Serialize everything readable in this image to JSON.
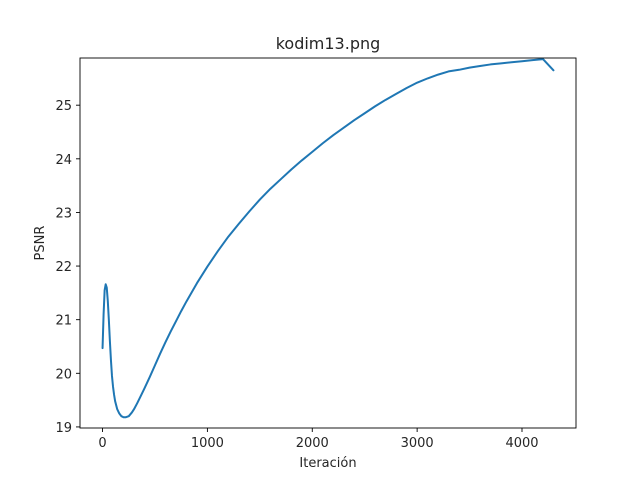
{
  "chart_data": {
    "type": "line",
    "title": "kodim13.png",
    "xlabel": "Iteración",
    "ylabel": "PSNR",
    "xlim": [
      -215,
      4515
    ],
    "ylim": [
      18.98,
      25.88
    ],
    "xticks": [
      0,
      1000,
      2000,
      3000,
      4000
    ],
    "yticks": [
      19,
      20,
      21,
      22,
      23,
      24,
      25
    ],
    "grid": false,
    "legend": "none",
    "series": [
      {
        "color": "#1f77b4",
        "x": [
          0,
          10,
          20,
          30,
          40,
          50,
          60,
          70,
          80,
          90,
          100,
          110,
          120,
          140,
          160,
          180,
          200,
          220,
          250,
          280,
          300,
          330,
          360,
          400,
          450,
          500,
          550,
          600,
          650,
          700,
          750,
          800,
          850,
          900,
          1000,
          1100,
          1200,
          1300,
          1400,
          1500,
          1600,
          1700,
          1800,
          1900,
          2000,
          2100,
          2200,
          2300,
          2400,
          2500,
          2600,
          2700,
          2800,
          2900,
          3000,
          3100,
          3200,
          3300,
          3400,
          3500,
          3600,
          3700,
          3800,
          3900,
          4000,
          4100,
          4200,
          4300
        ],
        "y": [
          20.47,
          21.1,
          21.55,
          21.66,
          21.6,
          21.35,
          21.0,
          20.6,
          20.25,
          19.95,
          19.75,
          19.6,
          19.48,
          19.33,
          19.25,
          19.2,
          19.18,
          19.18,
          19.2,
          19.27,
          19.33,
          19.44,
          19.56,
          19.72,
          19.93,
          20.15,
          20.37,
          20.58,
          20.78,
          20.97,
          21.16,
          21.34,
          21.51,
          21.68,
          21.99,
          22.28,
          22.55,
          22.79,
          23.02,
          23.24,
          23.44,
          23.62,
          23.8,
          23.97,
          24.13,
          24.29,
          24.44,
          24.58,
          24.72,
          24.85,
          24.98,
          25.1,
          25.21,
          25.32,
          25.42,
          25.5,
          25.57,
          25.63,
          25.66,
          25.7,
          25.73,
          25.76,
          25.78,
          25.8,
          25.82,
          25.84,
          25.86,
          25.65
        ]
      }
    ]
  }
}
